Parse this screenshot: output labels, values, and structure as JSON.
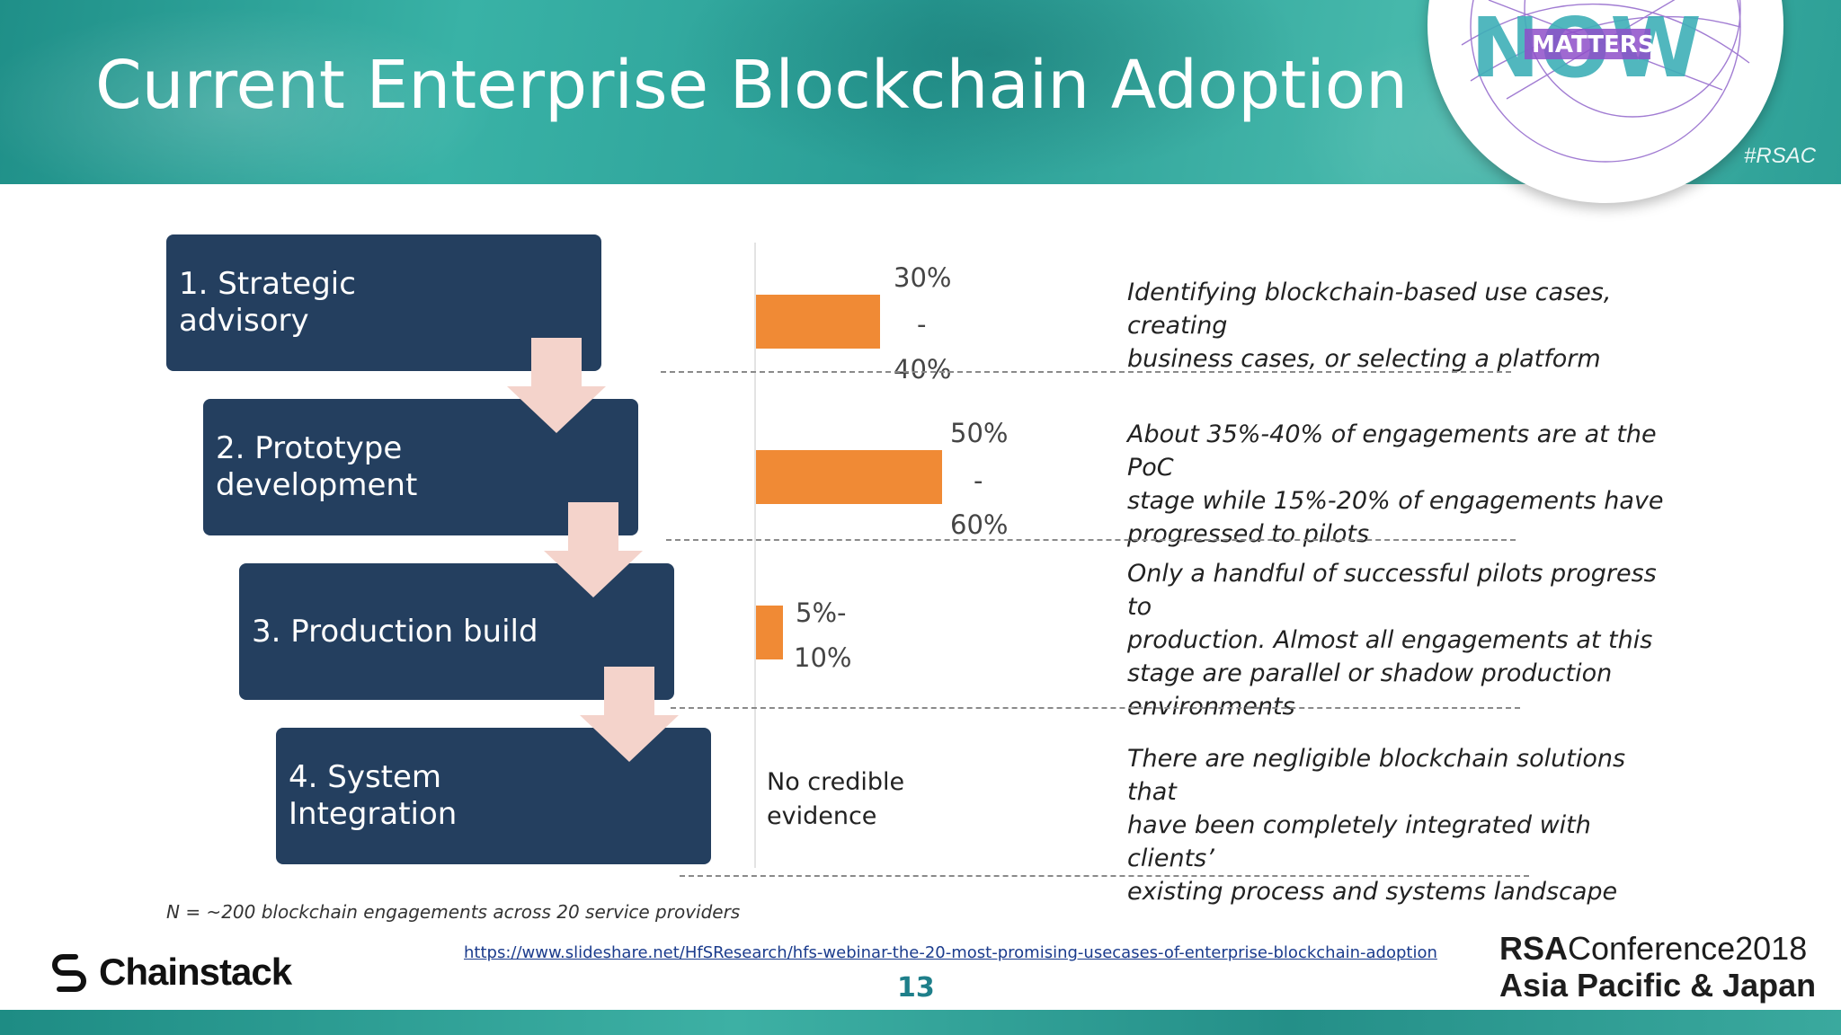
{
  "slide": {
    "title": "Current Enterprise Blockchain Adoption",
    "logo_text": "MATTERS",
    "logo_word": "NOW",
    "hashtag": "#RSAC",
    "page_number": "13"
  },
  "steps": [
    {
      "line1": "1. Strategic",
      "line2": "advisory"
    },
    {
      "line1": "2. Prototype",
      "line2": "development"
    },
    {
      "line1": "3. Production build",
      "line2": ""
    },
    {
      "line1": "4. System",
      "line2": "Integration"
    }
  ],
  "adoption": [
    {
      "top": "30%",
      "mid": "-",
      "bottom": "40%",
      "range_low": 30,
      "range_high": 40,
      "description": [
        "Identifying blockchain-based use cases, creating",
        "business cases, or selecting a platform"
      ]
    },
    {
      "top": "50%",
      "mid": "-",
      "bottom": "60%",
      "range_low": 50,
      "range_high": 60,
      "description": [
        "About 35%-40% of engagements are at the PoC",
        "stage while 15%-20% of engagements have",
        "progressed to pilots"
      ]
    },
    {
      "top": "5%-",
      "mid": "",
      "bottom": "10%",
      "range_low": 5,
      "range_high": 10,
      "description": [
        "Only a handful of successful pilots progress to",
        "production. Almost all engagements at this",
        "stage are parallel or shadow production",
        "environments"
      ]
    },
    {
      "no_evidence": [
        "No credible",
        "evidence"
      ],
      "description": [
        "There are negligible blockchain solutions that",
        "have been completely integrated with clients’",
        "existing process and systems landscape"
      ]
    }
  ],
  "footnote": "N = ~200 blockchain engagements across 20 service providers",
  "source_url": "https://www.slideshare.net/HfSResearch/hfs-webinar-the-20-most-promising-usecases-of-enterprise-blockchain-adoption",
  "brand": {
    "chainstack": "Chainstack",
    "rsa_bold": "RSA",
    "rsa_conference": "Conference2018",
    "rsa_region": "Asia Pacific & Japan"
  },
  "colors": {
    "step_box": "#243f5f",
    "bar": "#f08a35",
    "arrow": "#f4d3cb",
    "banner": "#2a9e96",
    "page_number": "#1e7f8a"
  }
}
